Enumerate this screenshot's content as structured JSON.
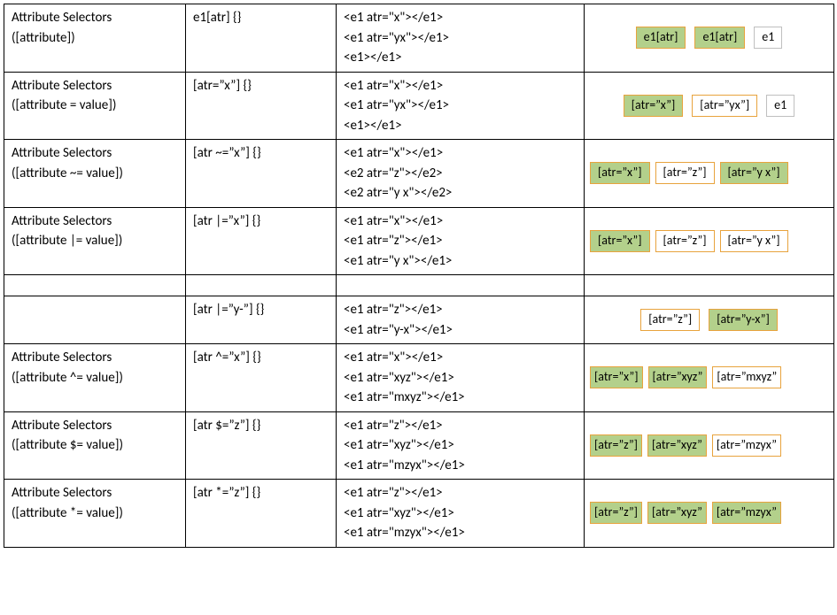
{
  "colors": {
    "match_bg": "#b3d08b",
    "match_border": "#e8a33d",
    "nomatch_bg": "#ffffff",
    "nomatch_border": "#e8a33d",
    "plain_bg": "#ffffff",
    "plain_border": "#bfbfbf"
  },
  "rows": [
    {
      "col1a": "Attribute Selectors",
      "col1b": "([attribute])",
      "col2": "e1[atr] {}",
      "col3": [
        "<e1 atr=\"x\"></e1>",
        "<e1 atr=\"yx\"></e1>",
        "<e1></e1>"
      ],
      "boxes": [
        {
          "text": "e1[atr]",
          "style": "match"
        },
        {
          "text": "e1[atr]",
          "style": "match"
        },
        {
          "text": "e1",
          "style": "plain"
        }
      ],
      "align": "center"
    },
    {
      "col1a": "Attribute Selectors",
      "col1b": "([attribute = value])",
      "col2": "[atr=”x”] {}",
      "col3": [
        "<e1 atr=\"x\"></e1>",
        "<e1 atr=\"yx\"></e1>",
        "<e1></e1>"
      ],
      "boxes": [
        {
          "text": "[atr=”x”]",
          "style": "match"
        },
        {
          "text": "[atr=”yx”]",
          "style": "nomatch"
        },
        {
          "text": "e1",
          "style": "plain"
        }
      ],
      "align": "center"
    },
    {
      "col1a": "Attribute Selectors",
      "col1b": "([attribute ~= value])",
      "col2": "[atr ~=”x”] {}",
      "col3": [
        "<e1 atr=\"x\"></e1>",
        "<e2 atr=\"z\"></e2>",
        "<e2 atr=\"y x\"></e2>"
      ],
      "boxes": [
        {
          "text": "[atr=”x”]",
          "style": "match"
        },
        {
          "text": "[atr=”z”]",
          "style": "nomatch"
        },
        {
          "text": "[atr=”y x”]",
          "style": "match"
        }
      ],
      "align": "left"
    },
    {
      "col1a": "Attribute Selectors",
      "col1b": "([attribute |= value])",
      "col2": "[atr |=”x”] {}",
      "col3": [
        "<e1 atr=\"x\"></e1>",
        "<e1 atr=\"z\"></e1>",
        "<e1 atr=\"y x\"></e1>"
      ],
      "boxes": [
        {
          "text": "[atr=”x”]",
          "style": "match"
        },
        {
          "text": "[atr=”z”]",
          "style": "nomatch"
        },
        {
          "text": "[atr=”y x”]",
          "style": "nomatch"
        }
      ],
      "align": "left"
    },
    {
      "empty": true
    },
    {
      "col1a": "",
      "col1b": "",
      "col2": "[atr |=”y-”] {}",
      "col3": [
        "<e1 atr=\"z\"></e1>",
        "<e1 atr=\"y-x\"></e1>"
      ],
      "boxes": [
        {
          "text": "[atr=”z”]",
          "style": "nomatch"
        },
        {
          "text": "[atr=”y-x”]",
          "style": "match"
        }
      ],
      "align": "center"
    },
    {
      "col1a": "Attribute Selectors",
      "col1b": "([attribute ^= value])",
      "col2": "[atr ^=”x”] {}",
      "col3": [
        "<e1 atr=\"x\"></e1>",
        "<e1 atr=\"xyz\"></e1>",
        "<e1 atr=\"mxyz\"></e1>"
      ],
      "boxes": [
        {
          "text": "[atr=”x”]",
          "style": "match"
        },
        {
          "text": "[atr=”xyz”",
          "style": "match"
        },
        {
          "text": "[atr=”mxyz”",
          "style": "nomatch"
        }
      ],
      "align": "left",
      "tight": true
    },
    {
      "col1a": "Attribute Selectors",
      "col1b": "([attribute $= value])",
      "col2": "[atr $=”z”] {}",
      "col3": [
        "<e1 atr=\"z\"></e1>",
        "<e1 atr=\"xyz\"></e1>",
        "<e1 atr=\"mzyx\"></e1>"
      ],
      "boxes": [
        {
          "text": "[atr=”z”]",
          "style": "match"
        },
        {
          "text": "[atr=”xyz”",
          "style": "match"
        },
        {
          "text": "[atr=”mzyx”",
          "style": "nomatch"
        }
      ],
      "align": "left",
      "tight": true
    },
    {
      "col1a": "Attribute Selectors",
      "col1b": "([attribute *= value])",
      "col2": "[atr *=”z”] {}",
      "col3": [
        "<e1 atr=\"z\"></e1>",
        "<e1 atr=\"xyz\"></e1>",
        "<e1 atr=\"mzyx\"></e1>"
      ],
      "boxes": [
        {
          "text": "[atr=”z”]",
          "style": "match"
        },
        {
          "text": "[atr=”xyz”",
          "style": "match"
        },
        {
          "text": "[atr=”mzyx”",
          "style": "match"
        }
      ],
      "align": "left",
      "tight": true
    }
  ]
}
